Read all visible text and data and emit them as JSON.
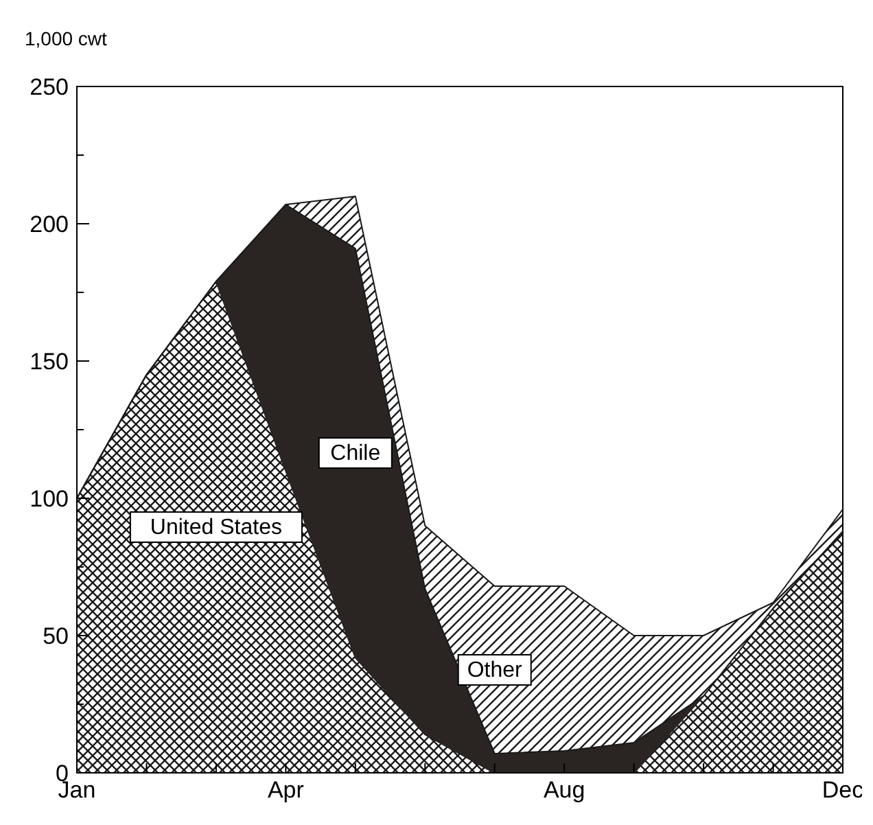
{
  "chart_data": {
    "type": "area",
    "stacked": true,
    "ylabel": "1,000 cwt",
    "categories": [
      "Jan",
      null,
      null,
      "Apr",
      null,
      null,
      null,
      "Aug",
      null,
      null,
      null,
      "Dec"
    ],
    "ylim": [
      0,
      250
    ],
    "yticks": [
      0,
      {
        "value": 25,
        "label": null
      },
      50,
      {
        "value": 75,
        "label": null
      },
      100,
      {
        "value": 125,
        "label": null
      },
      150,
      {
        "value": 175,
        "label": null
      },
      200,
      {
        "value": 225,
        "label": null
      },
      250
    ],
    "grid": false,
    "series": [
      {
        "name": "United States",
        "color": "#1a1a1a",
        "values": [
          100,
          145,
          179,
          110,
          42,
          14,
          0,
          0,
          0,
          28,
          60,
          88
        ]
      },
      {
        "name": "Chile",
        "color": "#2a2522",
        "values": [
          0,
          0,
          0,
          97,
          149,
          53,
          7,
          8,
          11,
          0,
          0,
          0
        ]
      },
      {
        "name": "Other",
        "color": "#1a1a1a",
        "values": [
          0,
          0,
          0,
          0,
          19,
          23,
          61,
          60,
          39,
          22,
          2,
          8
        ]
      }
    ]
  }
}
